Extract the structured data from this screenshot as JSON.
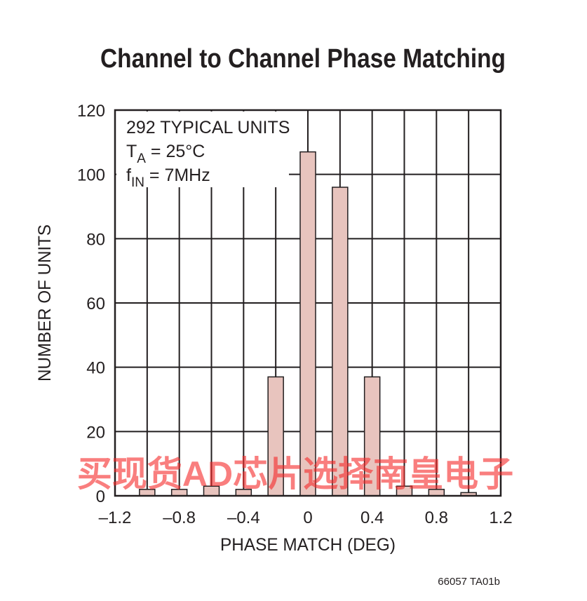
{
  "chart_data": {
    "type": "bar",
    "title": "Channel to Channel Phase Matching",
    "xlabel": "PHASE MATCH (DEG)",
    "ylabel": "NUMBER OF UNITS",
    "x": [
      -1.0,
      -0.8,
      -0.6,
      -0.4,
      -0.2,
      0,
      0.2,
      0.4,
      0.6,
      0.8,
      1.0
    ],
    "values": [
      2,
      2,
      3,
      2,
      37,
      107,
      96,
      37,
      3,
      2,
      1
    ],
    "color": "#e8c4be",
    "xlim": [
      -1.2,
      1.2
    ],
    "xticks": [
      {
        "value": -1.2,
        "label": "–1.2"
      },
      {
        "value": -0.8,
        "label": "–0.8"
      },
      {
        "value": -0.4,
        "label": "–0.4"
      },
      0,
      0.4,
      0.8,
      1.2
    ],
    "xminor": [
      -1.0,
      -0.6,
      -0.2,
      0.2,
      0.6,
      1.0
    ],
    "ylim": [
      0,
      120
    ],
    "yticks": [
      0,
      20,
      40,
      60,
      80,
      100,
      120
    ],
    "grid": true,
    "annotations": [
      {
        "main": "292 TYPICAL UNITS"
      },
      {
        "main": "T",
        "sub": "A",
        "rest": " = 25°C"
      },
      {
        "main": "f",
        "sub": "IN",
        "rest": " = 7MHz"
      }
    ],
    "watermark": "买现货AD芯片选择南皇电子",
    "footnote": "66057 TA01b"
  }
}
